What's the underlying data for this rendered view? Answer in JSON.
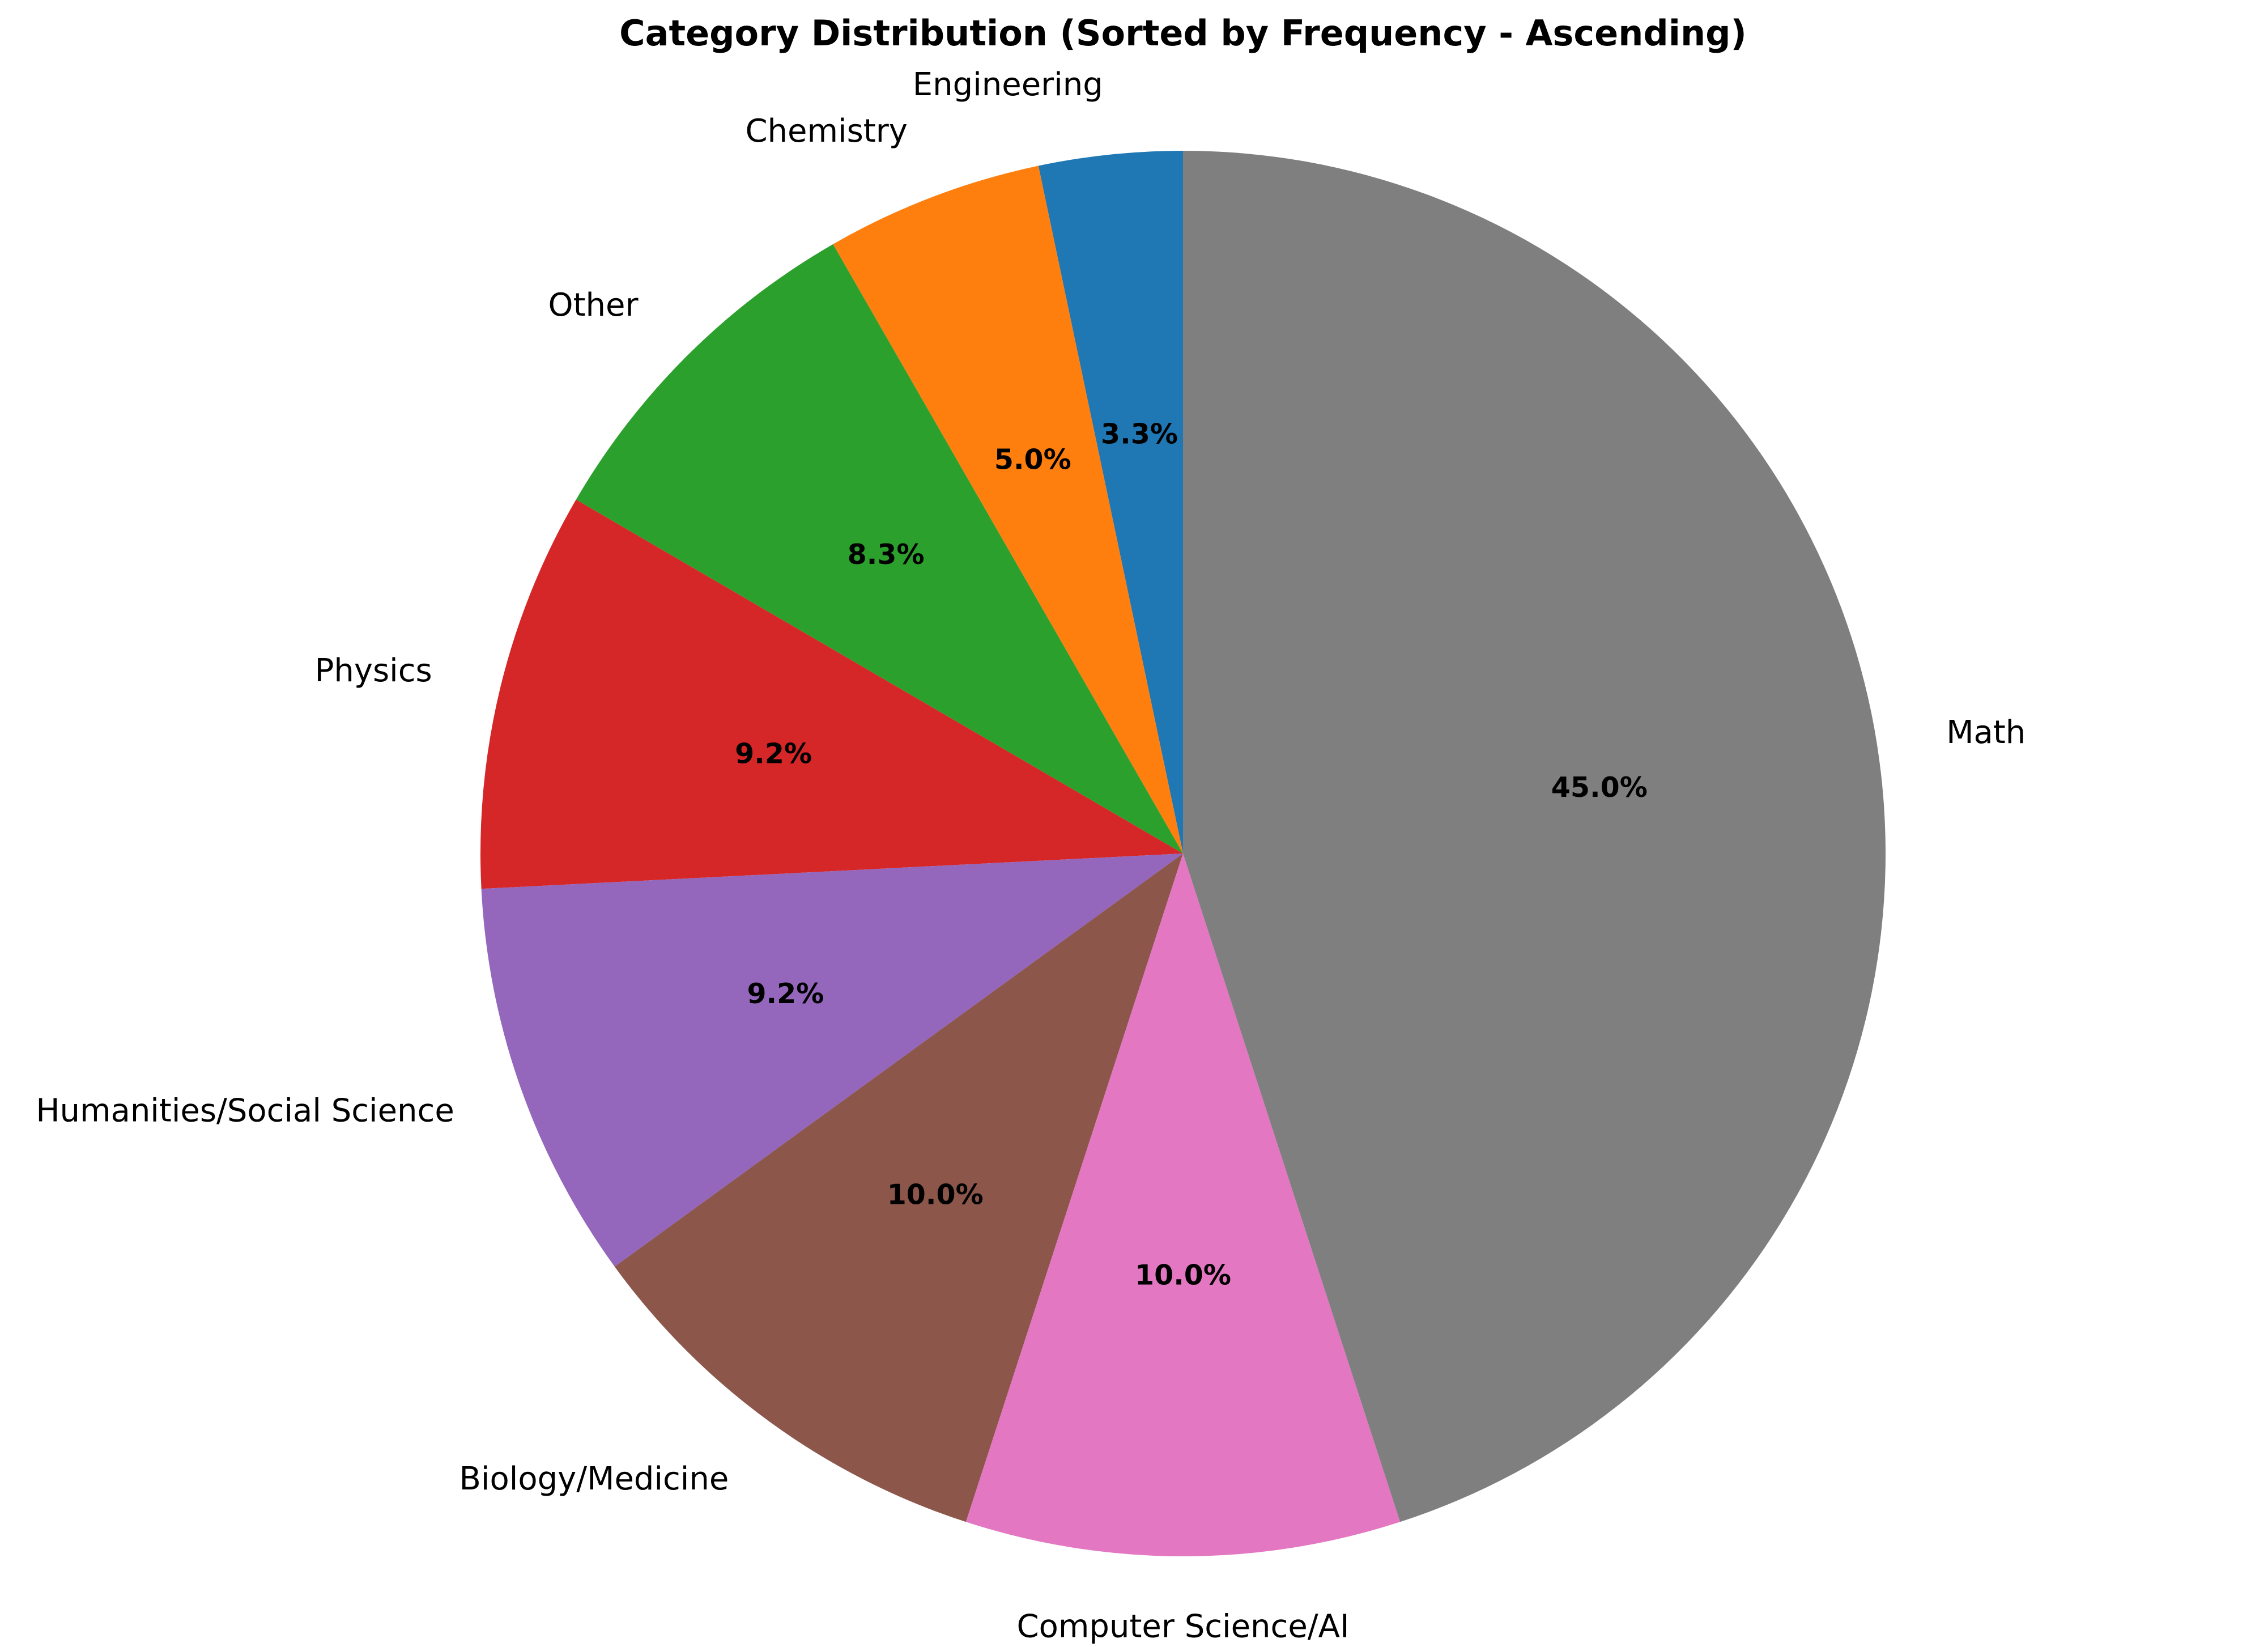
{
  "chart_data": {
    "type": "pie",
    "title": "Category Distribution (Sorted by Frequency - Ascending)",
    "start_angle_deg": 90,
    "direction": "counterclockwise",
    "slices": [
      {
        "label": "Engineering",
        "value": 3.3,
        "pct_label": "3.3%",
        "color": "#1f77b4"
      },
      {
        "label": "Chemistry",
        "value": 5.0,
        "pct_label": "5.0%",
        "color": "#ff7f0e"
      },
      {
        "label": "Other",
        "value": 8.3,
        "pct_label": "8.3%",
        "color": "#2ca02c"
      },
      {
        "label": "Physics",
        "value": 9.2,
        "pct_label": "9.2%",
        "color": "#d62728"
      },
      {
        "label": "Humanities/Social Science",
        "value": 9.2,
        "pct_label": "9.2%",
        "color": "#9467bd"
      },
      {
        "label": "Biology/Medicine",
        "value": 10.0,
        "pct_label": "10.0%",
        "color": "#8c564b"
      },
      {
        "label": "Computer Science/AI",
        "value": 10.0,
        "pct_label": "10.0%",
        "color": "#e377c2"
      },
      {
        "label": "Math",
        "value": 45.0,
        "pct_label": "45.0%",
        "color": "#7f7f7f"
      }
    ]
  }
}
